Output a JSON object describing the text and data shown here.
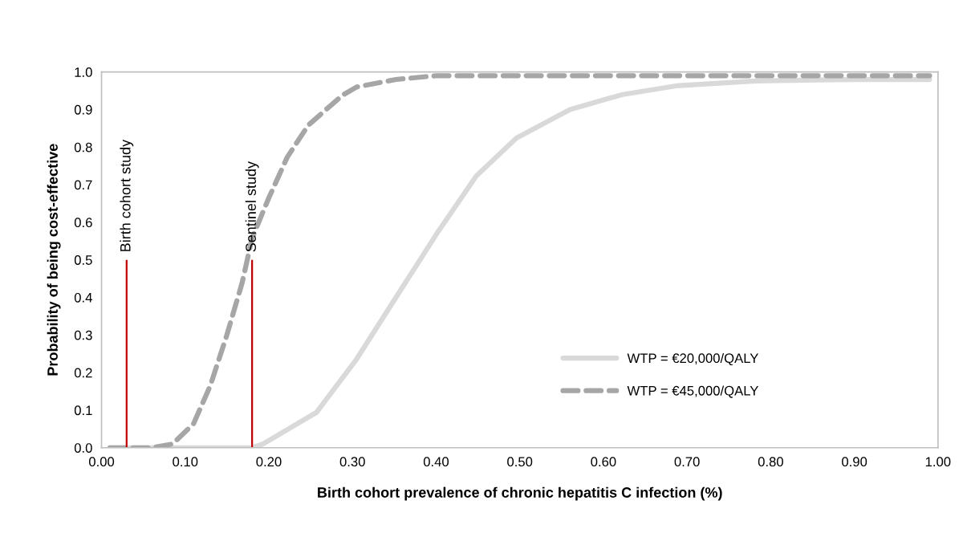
{
  "chart_data": {
    "type": "line",
    "xlabel": "Birth cohort prevalence of chronic hepatitis C infection (%)",
    "ylabel": "Probability of being cost-effective",
    "xlim": [
      0,
      1
    ],
    "ylim": [
      0,
      1
    ],
    "xticks": [
      {
        "value": 0,
        "label": "0.00"
      },
      {
        "value": 0.1,
        "label": "0.10"
      },
      {
        "value": 0.2,
        "label": "0.20"
      },
      {
        "value": 0.3,
        "label": "0.30"
      },
      {
        "value": 0.4,
        "label": "0.40"
      },
      {
        "value": 0.5,
        "label": "0.50"
      },
      {
        "value": 0.6,
        "label": "0.60"
      },
      {
        "value": 0.7,
        "label": "0.70"
      },
      {
        "value": 0.8,
        "label": "0.80"
      },
      {
        "value": 0.9,
        "label": "0.90"
      },
      {
        "value": 1,
        "label": "1.00"
      }
    ],
    "yticks": [
      {
        "value": 0,
        "label": "0.0"
      },
      {
        "value": 0.1,
        "label": "0.1"
      },
      {
        "value": 0.2,
        "label": "0.2"
      },
      {
        "value": 0.3,
        "label": "0.3"
      },
      {
        "value": 0.4,
        "label": "0.4"
      },
      {
        "value": 0.5,
        "label": "0.5"
      },
      {
        "value": 0.6,
        "label": "0.6"
      },
      {
        "value": 0.7,
        "label": "0.7"
      },
      {
        "value": 0.8,
        "label": "0.8"
      },
      {
        "value": 0.9,
        "label": "0.9"
      },
      {
        "value": 1,
        "label": "1.0"
      }
    ],
    "grid": false,
    "legend": "bottom right",
    "series": [
      {
        "name": "WTP = €20,000/QALY",
        "color": "#d9d9d9",
        "line_style": "solid",
        "x": [
          0.01,
          0.1,
          0.18,
          0.193,
          0.257,
          0.305,
          0.352,
          0.4,
          0.448,
          0.496,
          0.56,
          0.623,
          0.687,
          0.782,
          0.9,
          0.99
        ],
        "values": [
          0,
          0,
          0,
          0.01,
          0.094,
          0.236,
          0.4,
          0.567,
          0.723,
          0.824,
          0.9,
          0.94,
          0.963,
          0.976,
          0.98,
          0.98
        ]
      },
      {
        "name": "WTP = €45,000/QALY",
        "color": "#a6a6a6",
        "line_style": "dashed",
        "x": [
          0.01,
          0.06,
          0.085,
          0.11,
          0.13,
          0.149,
          0.168,
          0.18,
          0.2,
          0.222,
          0.247,
          0.288,
          0.305,
          0.352,
          0.4,
          0.6,
          0.8,
          0.99
        ],
        "values": [
          0,
          0,
          0.01,
          0.064,
          0.165,
          0.294,
          0.438,
          0.558,
          0.665,
          0.773,
          0.858,
          0.938,
          0.96,
          0.98,
          0.99,
          0.99,
          0.99,
          0.99
        ]
      },
      {
        "color": "#c00000",
        "line_style": "solid",
        "x": [
          0.03,
          0.03
        ],
        "values": [
          0,
          0.5
        ]
      },
      {
        "color": "#c00000",
        "line_style": "solid",
        "x": [
          0.18,
          0.18
        ],
        "values": [
          0,
          0.5
        ]
      }
    ],
    "annotations": [
      {
        "text": "Birth cohort study",
        "x": 0.03,
        "y": 0.5
      },
      {
        "text": "Sentinel study",
        "x": 0.18,
        "y": 0.5
      }
    ]
  }
}
